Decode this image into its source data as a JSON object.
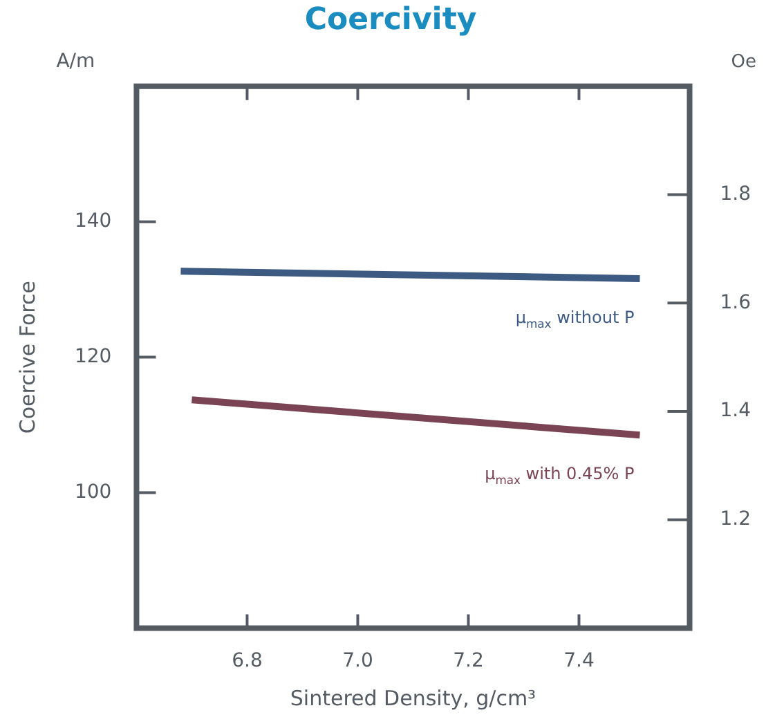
{
  "chart_data": {
    "type": "line",
    "title": "Coercivity",
    "xlabel": "Sintered Density, g/cm³",
    "ylabel": "Coercive Force",
    "y2label": "Oe",
    "annotations": [
      "A/m"
    ],
    "xlim": [
      6.6,
      7.6
    ],
    "xticks": [
      {
        "value": 6.8,
        "label": "6.8"
      },
      {
        "value": 7.0,
        "label": "7.0"
      },
      {
        "value": 7.2,
        "label": "7.2"
      },
      {
        "value": 7.4,
        "label": "7.4"
      }
    ],
    "ylim": [
      80,
      160
    ],
    "yticks": [
      100,
      120,
      140
    ],
    "y2lim": [
      1.0,
      2.0
    ],
    "y2ticks": [
      1.2,
      1.4,
      1.6,
      1.8
    ],
    "grid": false,
    "legend": false,
    "marker": "none",
    "line_style": "solid",
    "series": [
      {
        "name": "μ$_{max}$ without P",
        "color": "#3d5a82",
        "x": [
          6.68,
          7.51
        ],
        "values": [
          132.7,
          131.6
        ]
      },
      {
        "name": "μ$_{max}$ with 0.45% P",
        "color": "#7a4454",
        "x": [
          6.7,
          7.51
        ],
        "values": [
          113.7,
          108.5
        ]
      }
    ]
  }
}
